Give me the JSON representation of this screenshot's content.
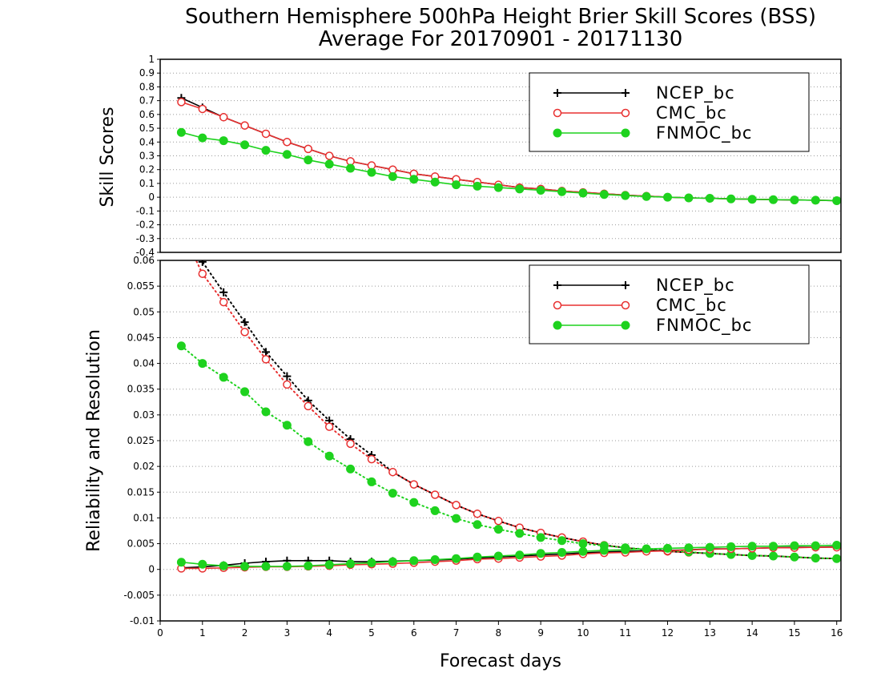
{
  "title": {
    "line1": "Southern Hemisphere 500hPa Height Brier Skill Scores (BSS)",
    "line2": "Average For 20170901 - 20171130"
  },
  "colors": {
    "NCEP_bc": "#000000",
    "CMC_bc": "#e83030",
    "FNMOC_bc": "#1ed21e",
    "grid": "#9a9a9a"
  },
  "chart_data": [
    {
      "type": "line",
      "panel": "top",
      "ylabel": "Skill Scores",
      "xlabel": "",
      "xlim": [
        0,
        16.1
      ],
      "ylim": [
        -0.4,
        1
      ],
      "yticks": [
        -0.4,
        -0.3,
        -0.2,
        -0.1,
        0,
        0.1,
        0.2,
        0.3,
        0.4,
        0.5,
        0.6,
        0.7,
        0.8,
        0.9,
        1
      ],
      "ytick_labels": [
        "-0.4",
        "-0.3",
        "-0.2",
        "-0.1",
        "0",
        "0.1",
        "0.2",
        "0.3",
        "0.4",
        "0.5",
        "0.6",
        "0.7",
        "0.8",
        "0.9",
        "1"
      ],
      "grid": "horizontal dotted",
      "legend": "top-right",
      "x": [
        0.5,
        1,
        1.5,
        2,
        2.5,
        3,
        3.5,
        4,
        4.5,
        5,
        5.5,
        6,
        6.5,
        7,
        7.5,
        8,
        8.5,
        9,
        9.5,
        10,
        10.5,
        11,
        11.5,
        12,
        12.5,
        13,
        13.5,
        14,
        14.5,
        15,
        15.5,
        16
      ],
      "series": [
        {
          "name": "NCEP_bc",
          "marker": "plus",
          "style": "solid",
          "values": [
            0.72,
            0.65,
            0.58,
            0.52,
            0.46,
            0.4,
            0.35,
            0.3,
            0.26,
            0.23,
            0.2,
            0.17,
            0.15,
            0.13,
            0.11,
            0.09,
            0.07,
            0.06,
            0.045,
            0.035,
            0.025,
            0.015,
            0.008,
            0.0,
            -0.005,
            -0.008,
            -0.012,
            -0.015,
            -0.018,
            -0.02,
            -0.022,
            -0.025
          ]
        },
        {
          "name": "CMC_bc",
          "marker": "open-circle",
          "style": "solid",
          "values": [
            0.69,
            0.64,
            0.58,
            0.52,
            0.46,
            0.4,
            0.35,
            0.3,
            0.26,
            0.23,
            0.2,
            0.17,
            0.15,
            0.13,
            0.11,
            0.09,
            0.07,
            0.06,
            0.045,
            0.035,
            0.025,
            0.015,
            0.008,
            0.0,
            -0.005,
            -0.008,
            -0.012,
            -0.015,
            -0.018,
            -0.02,
            -0.022,
            -0.025
          ]
        },
        {
          "name": "FNMOC_bc",
          "marker": "filled-circle",
          "style": "solid",
          "values": [
            0.47,
            0.43,
            0.41,
            0.38,
            0.34,
            0.31,
            0.27,
            0.24,
            0.21,
            0.18,
            0.15,
            0.13,
            0.11,
            0.09,
            0.08,
            0.07,
            0.06,
            0.05,
            0.04,
            0.03,
            0.02,
            0.012,
            0.005,
            0.0,
            -0.005,
            -0.008,
            -0.012,
            -0.015,
            -0.018,
            -0.02,
            -0.022,
            -0.025
          ]
        }
      ]
    },
    {
      "type": "line",
      "panel": "bottom",
      "ylabel": "Reliability and Resolution",
      "xlabel": "Forecast days",
      "xlim": [
        0,
        16.1
      ],
      "ylim": [
        -0.01,
        0.06
      ],
      "yticks": [
        -0.01,
        -0.005,
        0,
        0.005,
        0.01,
        0.015,
        0.02,
        0.025,
        0.03,
        0.035,
        0.04,
        0.045,
        0.05,
        0.055,
        0.06
      ],
      "ytick_labels": [
        "-0.01",
        "-0.005",
        "0",
        "0.005",
        "0.01",
        "0.015",
        "0.02",
        "0.025",
        "0.03",
        "0.035",
        "0.04",
        "0.045",
        "0.05",
        "0.055",
        "0.06"
      ],
      "xticks": [
        0,
        1,
        2,
        3,
        4,
        5,
        6,
        7,
        8,
        9,
        10,
        11,
        12,
        13,
        14,
        15,
        16
      ],
      "xtick_labels": [
        "0",
        "1",
        "2",
        "3",
        "4",
        "5",
        "6",
        "7",
        "8",
        "9",
        "10",
        "11",
        "12",
        "13",
        "14",
        "15",
        "16"
      ],
      "grid": "horizontal dotted",
      "legend": "top-right",
      "x": [
        0.5,
        1,
        1.5,
        2,
        2.5,
        3,
        3.5,
        4,
        4.5,
        5,
        5.5,
        6,
        6.5,
        7,
        7.5,
        8,
        8.5,
        9,
        9.5,
        10,
        10.5,
        11,
        11.5,
        12,
        12.5,
        13,
        13.5,
        14,
        14.5,
        15,
        15.5,
        16
      ],
      "series": [
        {
          "name": "NCEP_bc",
          "kind": "resolution",
          "marker": "plus",
          "style": "dotted",
          "values": [
            0.068,
            0.0597,
            0.0538,
            0.048,
            0.0422,
            0.0375,
            0.0328,
            0.0289,
            0.0253,
            0.0222,
            0.0189,
            0.0165,
            0.0145,
            0.0125,
            0.0108,
            0.0094,
            0.0081,
            0.0071,
            0.0062,
            0.0054,
            0.0047,
            0.0042,
            0.0038,
            0.0035,
            0.0033,
            0.0031,
            0.0029,
            0.0027,
            0.0026,
            0.0024,
            0.0022,
            0.0021
          ]
        },
        {
          "name": "CMC_bc",
          "kind": "resolution",
          "marker": "open-circle",
          "style": "dotted",
          "values": [
            0.066,
            0.0574,
            0.0519,
            0.0461,
            0.0408,
            0.0359,
            0.0317,
            0.0277,
            0.0244,
            0.0214,
            0.0189,
            0.0165,
            0.0145,
            0.0125,
            0.0108,
            0.0094,
            0.0081,
            0.0071,
            0.0062,
            0.0054,
            0.0047,
            0.0042,
            0.0038,
            0.0035,
            0.0033,
            0.0031,
            0.0029,
            0.0027,
            0.0026,
            0.0024,
            0.0022,
            0.0021
          ]
        },
        {
          "name": "FNMOC_bc",
          "kind": "resolution",
          "marker": "filled-circle",
          "style": "dotted",
          "values": [
            0.0434,
            0.04,
            0.0373,
            0.0345,
            0.0306,
            0.028,
            0.0248,
            0.022,
            0.0195,
            0.017,
            0.0148,
            0.013,
            0.0114,
            0.0099,
            0.0087,
            0.0078,
            0.007,
            0.0062,
            0.0056,
            0.005,
            0.0046,
            0.0042,
            0.0039,
            0.0037,
            0.0034,
            0.0031,
            0.0029,
            0.0027,
            0.0026,
            0.0024,
            0.0022,
            0.0021
          ]
        },
        {
          "name": "NCEP_bc",
          "kind": "reliability",
          "marker": "plus",
          "style": "solid",
          "values": [
            0.0003,
            0.0005,
            0.0008,
            0.0012,
            0.0015,
            0.0017,
            0.0017,
            0.0017,
            0.0015,
            0.0015,
            0.0016,
            0.0017,
            0.0018,
            0.002,
            0.0022,
            0.0024,
            0.0026,
            0.0028,
            0.003,
            0.0032,
            0.0034,
            0.0035,
            0.0036,
            0.0037,
            0.0038,
            0.004,
            0.004,
            0.0041,
            0.0042,
            0.0043,
            0.0043,
            0.0044
          ]
        },
        {
          "name": "CMC_bc",
          "kind": "reliability",
          "marker": "open-circle",
          "style": "solid",
          "values": [
            0.0002,
            0.0002,
            0.0003,
            0.0004,
            0.0005,
            0.0005,
            0.0006,
            0.0007,
            0.0009,
            0.001,
            0.0011,
            0.0013,
            0.0015,
            0.0017,
            0.002,
            0.0021,
            0.0023,
            0.0025,
            0.0027,
            0.003,
            0.0032,
            0.0033,
            0.0035,
            0.0036,
            0.0038,
            0.0039,
            0.004,
            0.0041,
            0.0042,
            0.0042,
            0.0043,
            0.0043
          ]
        },
        {
          "name": "FNMOC_bc",
          "kind": "reliability",
          "marker": "filled-circle",
          "style": "solid",
          "values": [
            0.0014,
            0.001,
            0.0007,
            0.0006,
            0.0006,
            0.0006,
            0.0007,
            0.0009,
            0.0011,
            0.0013,
            0.0015,
            0.0017,
            0.0019,
            0.0021,
            0.0024,
            0.0026,
            0.0028,
            0.0031,
            0.0033,
            0.0035,
            0.0037,
            0.0038,
            0.004,
            0.0041,
            0.0042,
            0.0043,
            0.0044,
            0.0045,
            0.0045,
            0.0046,
            0.0046,
            0.0047
          ]
        }
      ]
    }
  ]
}
